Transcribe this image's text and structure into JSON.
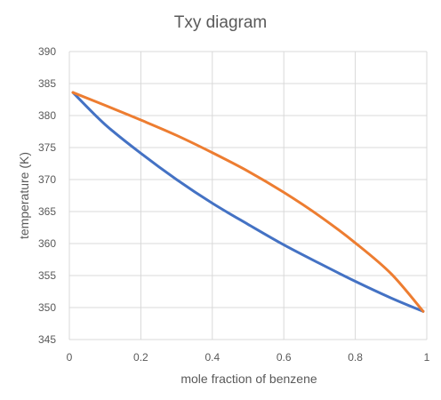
{
  "chart_data": {
    "type": "line",
    "title": "Txy diagram",
    "xlabel": "mole fraction of benzene",
    "ylabel": "temperature (K)",
    "xlim": [
      0,
      1
    ],
    "ylim": [
      345,
      390
    ],
    "x_ticks": [
      "0",
      "0.2",
      "0.4",
      "0.6",
      "0.8",
      "1"
    ],
    "y_ticks": [
      "345",
      "350",
      "355",
      "360",
      "365",
      "370",
      "375",
      "380",
      "385",
      "390"
    ],
    "grid": true,
    "legend": "none",
    "series": [
      {
        "color": "#4472C4",
        "points": [
          [
            0.01,
            383.6
          ],
          [
            0.1,
            378.6
          ],
          [
            0.2,
            374.1
          ],
          [
            0.3,
            370.0
          ],
          [
            0.4,
            366.3
          ],
          [
            0.5,
            363.0
          ],
          [
            0.6,
            359.8
          ],
          [
            0.7,
            356.9
          ],
          [
            0.8,
            354.1
          ],
          [
            0.9,
            351.5
          ],
          [
            0.99,
            349.4
          ]
        ]
      },
      {
        "color": "#ED7D31",
        "points": [
          [
            0.01,
            383.6
          ],
          [
            0.1,
            381.6
          ],
          [
            0.2,
            379.3
          ],
          [
            0.3,
            376.9
          ],
          [
            0.4,
            374.2
          ],
          [
            0.5,
            371.3
          ],
          [
            0.6,
            368.0
          ],
          [
            0.7,
            364.3
          ],
          [
            0.8,
            360.1
          ],
          [
            0.9,
            355.3
          ],
          [
            0.99,
            349.4
          ]
        ]
      }
    ]
  }
}
